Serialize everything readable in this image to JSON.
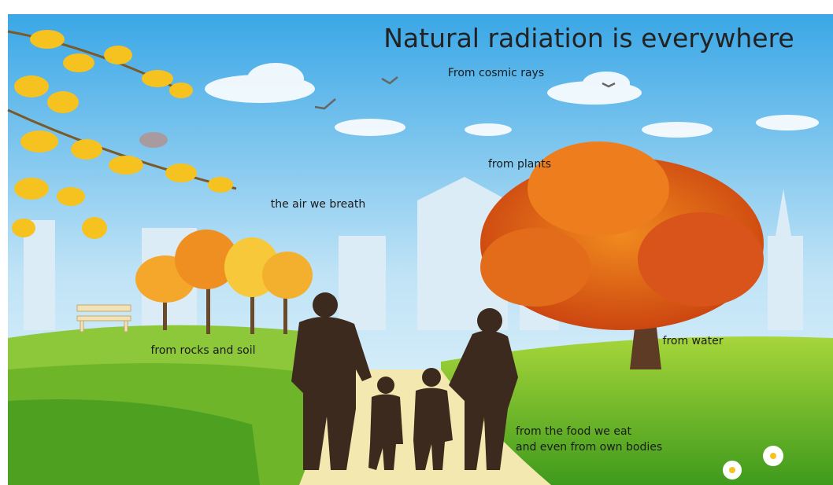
{
  "title": "Natural radiation is everywhere",
  "labels": {
    "cosmic": "From cosmic rays",
    "plants": "from plants",
    "air": "the air we breath",
    "rocks": "from rocks and soil",
    "water": "from water",
    "food": [
      "from the food we eat",
      "and even from own bodies"
    ]
  }
}
